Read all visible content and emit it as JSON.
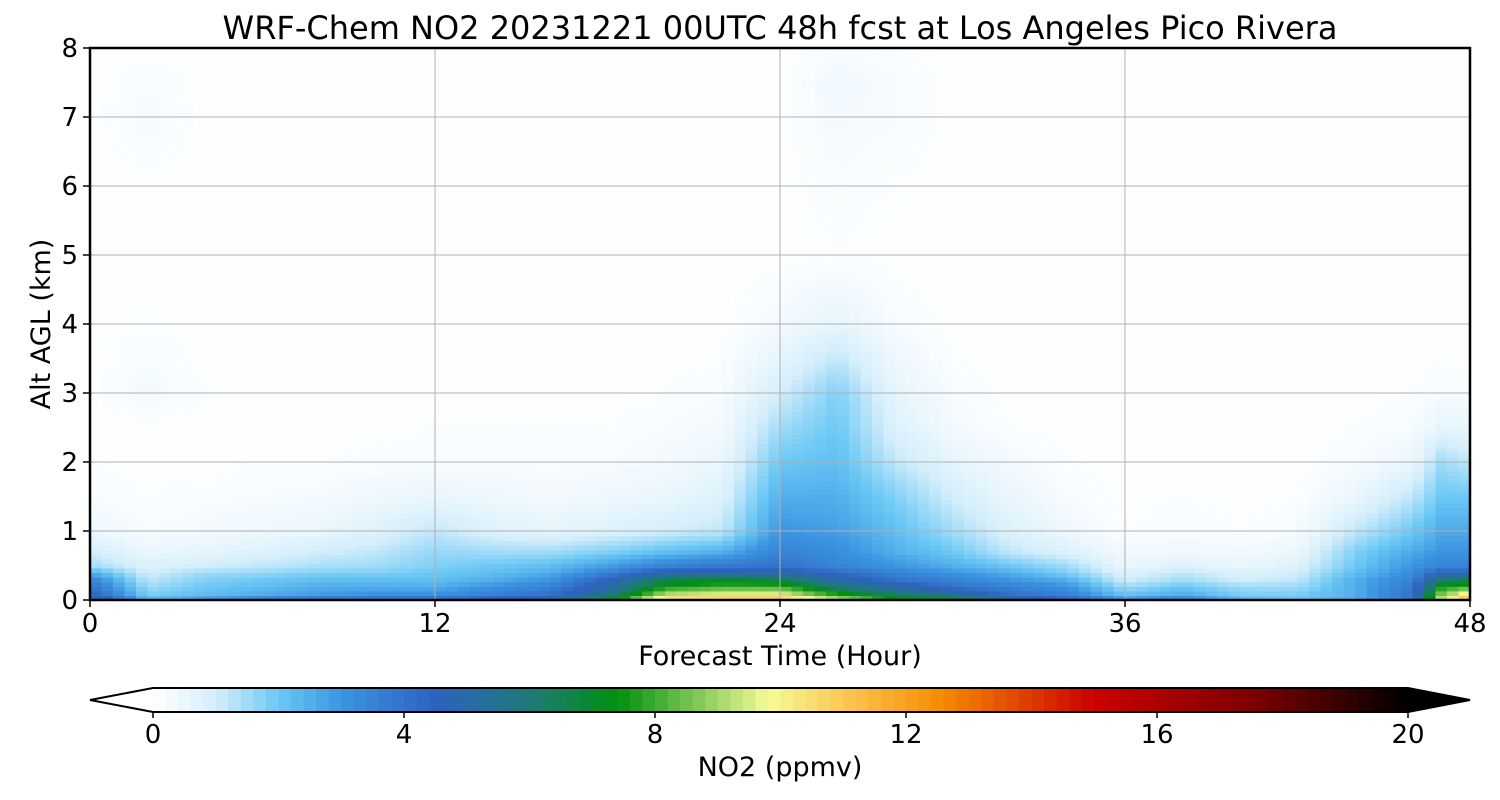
{
  "chart_data": {
    "type": "heatmap",
    "title": "WRF-Chem NO2  20231221 00UTC 48h fcst at Los Angeles Pico Rivera",
    "xlabel": "Forecast Time (Hour)",
    "ylabel": "Alt AGL (km)",
    "xlim": [
      0,
      48
    ],
    "ylim": [
      0,
      8
    ],
    "x_ticks": [
      "0",
      "12",
      "24",
      "36",
      "48"
    ],
    "y_ticks": [
      "0",
      "1",
      "2",
      "3",
      "4",
      "5",
      "6",
      "7",
      "8"
    ],
    "grid": true,
    "x": [
      0,
      2,
      4,
      6,
      8,
      10,
      12,
      14,
      16,
      18,
      20,
      22,
      24,
      26,
      28,
      30,
      32,
      34,
      36,
      38,
      40,
      42,
      44,
      46,
      47,
      48
    ],
    "y": [
      0,
      0.05,
      0.1,
      0.2,
      0.3,
      0.4,
      0.5,
      0.7,
      1.0,
      1.5,
      2.0,
      2.5,
      3.0,
      3.5,
      4.0,
      5.0,
      6.0,
      7.0,
      7.5,
      8.0
    ],
    "values": [
      [
        6,
        2.5,
        3,
        3.5,
        4,
        4.5,
        4.5,
        5,
        5,
        7,
        11,
        11,
        11,
        9.5,
        7.5,
        7,
        5.5,
        4.5,
        3,
        3.5,
        2.5,
        2,
        2.5,
        4,
        9.5,
        12
      ],
      [
        5,
        2,
        2.5,
        3,
        3.5,
        3.5,
        3.5,
        4,
        4.5,
        6,
        10,
        10.5,
        10.5,
        8.5,
        7,
        6,
        4.5,
        4,
        2.5,
        3,
        2,
        2,
        2.5,
        4,
        9,
        11
      ],
      [
        4.5,
        1.8,
        2.2,
        2.5,
        2.8,
        3,
        3,
        3.5,
        4,
        5.5,
        9,
        9.5,
        9.5,
        7.5,
        6,
        5,
        4,
        3.5,
        2,
        2.5,
        1.8,
        1.8,
        2.5,
        4,
        8.5,
        10
      ],
      [
        4,
        1.5,
        2,
        2.2,
        2.5,
        2.5,
        2.5,
        3,
        3.5,
        5,
        7.5,
        8,
        8,
        6,
        5,
        4,
        3.5,
        3,
        1.5,
        2,
        1.5,
        1.5,
        2.5,
        3.8,
        7.5,
        8
      ],
      [
        3.5,
        1.2,
        1.8,
        2,
        2.2,
        2.2,
        2.2,
        2.5,
        3,
        4.5,
        6.5,
        7,
        6.5,
        5,
        4,
        3.5,
        3,
        2.5,
        1,
        1.5,
        1,
        1.2,
        2.5,
        3.5,
        6,
        6.5
      ],
      [
        2.5,
        1,
        1.5,
        1.6,
        1.8,
        1.8,
        2,
        2.2,
        2.5,
        3.5,
        5,
        5,
        5,
        4.2,
        3.5,
        3,
        2.5,
        1.8,
        0.8,
        1.2,
        0.8,
        1,
        2.2,
        3.2,
        4.5,
        4.5
      ],
      [
        1.5,
        0.8,
        1,
        1.2,
        1.4,
        1.5,
        1.8,
        2,
        2.2,
        2.8,
        3.5,
        3.8,
        4,
        3.5,
        3,
        2.5,
        2,
        1.5,
        0.5,
        0.8,
        0.5,
        0.8,
        2,
        3,
        3.5,
        3.5
      ],
      [
        1,
        0.5,
        0.6,
        0.8,
        1,
        1.2,
        1.6,
        1.5,
        1.5,
        1.8,
        2.2,
        2.5,
        3.5,
        3.2,
        2.5,
        2,
        1.2,
        0.8,
        0.3,
        0.4,
        0.3,
        0.5,
        1.8,
        2.6,
        3,
        3
      ],
      [
        0.4,
        0.2,
        0.3,
        0.4,
        0.5,
        0.8,
        1.2,
        0.8,
        0.6,
        0.8,
        1,
        1.2,
        3,
        2.8,
        2.2,
        1.5,
        0.8,
        0.4,
        0.1,
        0.2,
        0.1,
        0.2,
        1.2,
        2,
        2.6,
        2.6
      ],
      [
        0.2,
        0.1,
        0.15,
        0.2,
        0.25,
        0.4,
        0.5,
        0.4,
        0.3,
        0.4,
        0.5,
        0.8,
        2.5,
        2.5,
        1.8,
        1,
        0.5,
        0.2,
        0.05,
        0.1,
        0.05,
        0.1,
        0.5,
        1.2,
        2,
        2
      ],
      [
        0.1,
        0.05,
        0.05,
        0.1,
        0.1,
        0.15,
        0.2,
        0.2,
        0.15,
        0.2,
        0.3,
        0.5,
        2,
        2.2,
        1.2,
        0.6,
        0.3,
        0.1,
        0.05,
        0.05,
        0.05,
        0.05,
        0.2,
        0.5,
        1.5,
        1.2
      ],
      [
        0.05,
        0.05,
        0.05,
        0.05,
        0.05,
        0.05,
        0.1,
        0.1,
        0.1,
        0.1,
        0.2,
        0.3,
        1.5,
        2,
        0.8,
        0.3,
        0.1,
        0.05,
        0.05,
        0.05,
        0.05,
        0.05,
        0.1,
        0.2,
        0.6,
        0.5
      ],
      [
        0.05,
        0.3,
        0.1,
        0.05,
        0.05,
        0.05,
        0.05,
        0.05,
        0.05,
        0.05,
        0.1,
        0.2,
        1,
        1.8,
        0.6,
        0.2,
        0.05,
        0.05,
        0.05,
        0.05,
        0.05,
        0.05,
        0.05,
        0.1,
        0.2,
        0.2
      ],
      [
        0.05,
        0.2,
        0.05,
        0.05,
        0.05,
        0.05,
        0.05,
        0.05,
        0.05,
        0.05,
        0.05,
        0.1,
        0.6,
        1.2,
        0.4,
        0.1,
        0.05,
        0.05,
        0.05,
        0.05,
        0.05,
        0.05,
        0.05,
        0.05,
        0.1,
        0.1
      ],
      [
        0.05,
        0.1,
        0.05,
        0.05,
        0.05,
        0.05,
        0.05,
        0.05,
        0.05,
        0.05,
        0.05,
        0.05,
        0.3,
        0.6,
        0.2,
        0.05,
        0.05,
        0.05,
        0.05,
        0.05,
        0.05,
        0.05,
        0.05,
        0.05,
        0.05,
        0.05
      ],
      [
        0.05,
        0.05,
        0.05,
        0.05,
        0.05,
        0.05,
        0.05,
        0.05,
        0.05,
        0.05,
        0.05,
        0.05,
        0.05,
        0.1,
        0.05,
        0.05,
        0.05,
        0.05,
        0.05,
        0.05,
        0.05,
        0.05,
        0.05,
        0.05,
        0.05,
        0.05
      ],
      [
        0.05,
        0.05,
        0.05,
        0.05,
        0.05,
        0.05,
        0.05,
        0.05,
        0.05,
        0.05,
        0.05,
        0.05,
        0.05,
        0.15,
        0.1,
        0.05,
        0.05,
        0.05,
        0.05,
        0.05,
        0.05,
        0.05,
        0.05,
        0.05,
        0.05,
        0.05
      ],
      [
        0.05,
        0.25,
        0.05,
        0.05,
        0.05,
        0.05,
        0.05,
        0.05,
        0.05,
        0.05,
        0.05,
        0.05,
        0.05,
        0.3,
        0.2,
        0.05,
        0.05,
        0.05,
        0.05,
        0.05,
        0.05,
        0.05,
        0.05,
        0.05,
        0.05,
        0.05
      ],
      [
        0.05,
        0.2,
        0.05,
        0.05,
        0.05,
        0.05,
        0.05,
        0.05,
        0.05,
        0.05,
        0.05,
        0.05,
        0.05,
        0.35,
        0.2,
        0.05,
        0.05,
        0.05,
        0.05,
        0.05,
        0.05,
        0.05,
        0.05,
        0.05,
        0.05,
        0.05
      ],
      [
        0.05,
        0.05,
        0.05,
        0.05,
        0.05,
        0.05,
        0.05,
        0.05,
        0.05,
        0.05,
        0.05,
        0.05,
        0.05,
        0.2,
        0.1,
        0.05,
        0.05,
        0.05,
        0.05,
        0.05,
        0.05,
        0.05,
        0.05,
        0.05,
        0.05,
        0.05
      ]
    ],
    "colorbar": {
      "label": "NO2  (ppmv)",
      "min": 0,
      "max": 20,
      "ticks": [
        "0",
        "4",
        "8",
        "12",
        "16",
        "20"
      ],
      "extend": "both",
      "colors": [
        {
          "v": 0,
          "c": "#ffffff"
        },
        {
          "v": 1,
          "c": "#d4eefb"
        },
        {
          "v": 2,
          "c": "#6cc8f5"
        },
        {
          "v": 3,
          "c": "#3b94e0"
        },
        {
          "v": 4.5,
          "c": "#2e62c0"
        },
        {
          "v": 6,
          "c": "#1f7a7a"
        },
        {
          "v": 7.4,
          "c": "#008f0f"
        },
        {
          "v": 9.8,
          "c": "#f4fb96"
        },
        {
          "v": 11.2,
          "c": "#fbc04a"
        },
        {
          "v": 12.6,
          "c": "#f48a00"
        },
        {
          "v": 15,
          "c": "#cc0000"
        },
        {
          "v": 17.6,
          "c": "#7a0000"
        },
        {
          "v": 20,
          "c": "#000000"
        }
      ]
    }
  }
}
